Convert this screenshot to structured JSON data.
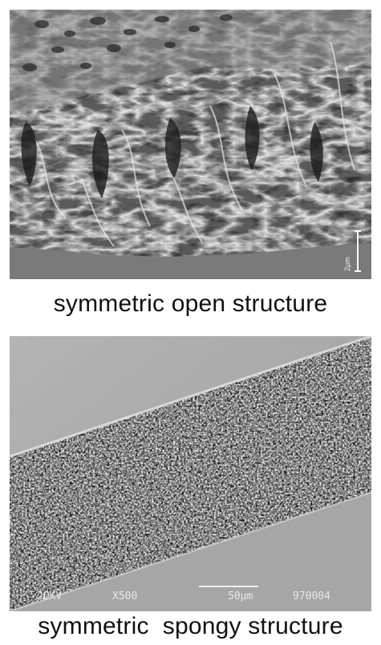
{
  "panels": [
    {
      "caption": "symmetric open structure",
      "scale_bar_label": "2μm"
    },
    {
      "caption": "symmetric  spongy structure",
      "sem_info": {
        "voltage": "20KV",
        "magnification": "X500",
        "scale_label": "50μm",
        "image_number": "970004"
      }
    }
  ]
}
